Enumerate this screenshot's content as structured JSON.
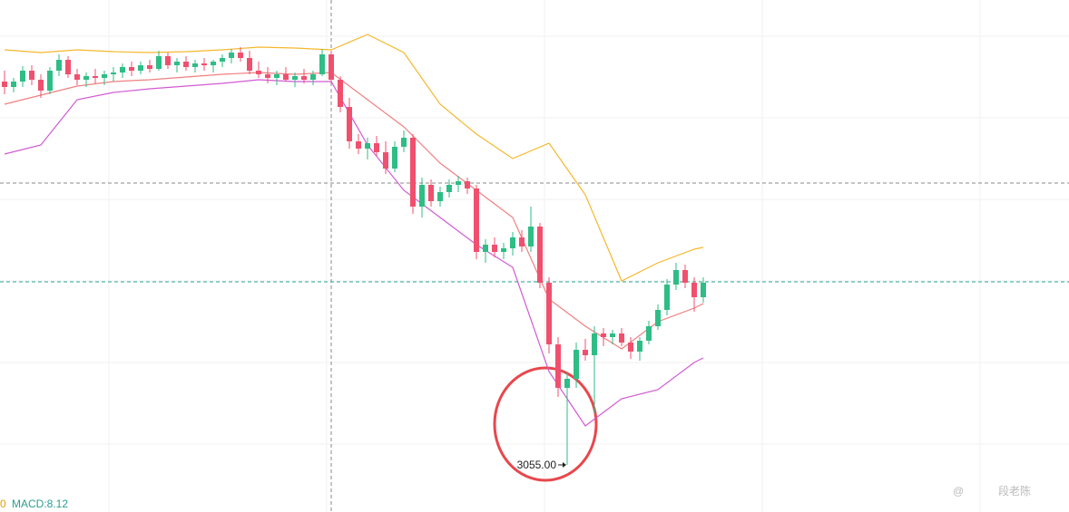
{
  "chart_data": {
    "type": "candlestick",
    "ylim": [
      3003,
      3568
    ],
    "up_color": "#2ebd85",
    "down_color": "#f0506e",
    "candles": [
      [
        3478,
        3490,
        3464,
        3472
      ],
      [
        3472,
        3482,
        3466,
        3478
      ],
      [
        3478,
        3495,
        3472,
        3490
      ],
      [
        3490,
        3496,
        3474,
        3480
      ],
      [
        3480,
        3486,
        3460,
        3468
      ],
      [
        3468,
        3494,
        3464,
        3490
      ],
      [
        3490,
        3508,
        3484,
        3502
      ],
      [
        3502,
        3506,
        3482,
        3486
      ],
      [
        3486,
        3492,
        3474,
        3480
      ],
      [
        3480,
        3488,
        3472,
        3484
      ],
      [
        3484,
        3492,
        3476,
        3482
      ],
      [
        3482,
        3490,
        3474,
        3486
      ],
      [
        3486,
        3494,
        3478,
        3488
      ],
      [
        3488,
        3498,
        3482,
        3494
      ],
      [
        3494,
        3500,
        3484,
        3490
      ],
      [
        3490,
        3500,
        3486,
        3496
      ],
      [
        3496,
        3502,
        3488,
        3492
      ],
      [
        3492,
        3512,
        3490,
        3506
      ],
      [
        3506,
        3510,
        3492,
        3496
      ],
      [
        3496,
        3504,
        3488,
        3500
      ],
      [
        3500,
        3506,
        3490,
        3494
      ],
      [
        3494,
        3502,
        3488,
        3498
      ],
      [
        3498,
        3504,
        3490,
        3496
      ],
      [
        3496,
        3502,
        3488,
        3500
      ],
      [
        3500,
        3508,
        3494,
        3504
      ],
      [
        3504,
        3514,
        3498,
        3510
      ],
      [
        3510,
        3516,
        3500,
        3504
      ],
      [
        3504,
        3512,
        3486,
        3490
      ],
      [
        3490,
        3500,
        3482,
        3486
      ],
      [
        3486,
        3494,
        3476,
        3482
      ],
      [
        3482,
        3490,
        3474,
        3486
      ],
      [
        3486,
        3494,
        3478,
        3480
      ],
      [
        3480,
        3488,
        3472,
        3484
      ],
      [
        3484,
        3492,
        3476,
        3480
      ],
      [
        3480,
        3490,
        3474,
        3486
      ],
      [
        3486,
        3514,
        3484,
        3508
      ],
      [
        3508,
        3512,
        3476,
        3480
      ],
      [
        3480,
        3484,
        3444,
        3450
      ],
      [
        3450,
        3460,
        3404,
        3412
      ],
      [
        3412,
        3420,
        3398,
        3404
      ],
      [
        3404,
        3416,
        3392,
        3410
      ],
      [
        3410,
        3418,
        3396,
        3400
      ],
      [
        3400,
        3412,
        3376,
        3382
      ],
      [
        3382,
        3412,
        3378,
        3406
      ],
      [
        3406,
        3424,
        3400,
        3416
      ],
      [
        3416,
        3420,
        3332,
        3340
      ],
      [
        3340,
        3372,
        3328,
        3364
      ],
      [
        3364,
        3370,
        3340,
        3346
      ],
      [
        3346,
        3362,
        3340,
        3356
      ],
      [
        3356,
        3370,
        3350,
        3364
      ],
      [
        3364,
        3374,
        3356,
        3368
      ],
      [
        3368,
        3372,
        3354,
        3360
      ],
      [
        3360,
        3364,
        3282,
        3290
      ],
      [
        3290,
        3304,
        3278,
        3298
      ],
      [
        3298,
        3306,
        3284,
        3290
      ],
      [
        3290,
        3300,
        3282,
        3294
      ],
      [
        3294,
        3312,
        3286,
        3306
      ],
      [
        3306,
        3314,
        3290,
        3296
      ],
      [
        3296,
        3340,
        3290,
        3318
      ],
      [
        3318,
        3322,
        3250,
        3256
      ],
      [
        3256,
        3262,
        3178,
        3188
      ],
      [
        3188,
        3196,
        3130,
        3140
      ],
      [
        3140,
        3158,
        3055,
        3150
      ],
      [
        3150,
        3190,
        3140,
        3182
      ],
      [
        3182,
        3194,
        3170,
        3176
      ],
      [
        3176,
        3208,
        3112,
        3200
      ],
      [
        3200,
        3206,
        3186,
        3196
      ],
      [
        3196,
        3204,
        3188,
        3200
      ],
      [
        3200,
        3206,
        3186,
        3190
      ],
      [
        3190,
        3196,
        3172,
        3180
      ],
      [
        3180,
        3196,
        3170,
        3192
      ],
      [
        3192,
        3214,
        3188,
        3208
      ],
      [
        3208,
        3232,
        3204,
        3226
      ],
      [
        3226,
        3260,
        3220,
        3254
      ],
      [
        3254,
        3278,
        3248,
        3270
      ],
      [
        3270,
        3276,
        3250,
        3256
      ],
      [
        3256,
        3262,
        3224,
        3240
      ],
      [
        3240,
        3262,
        3234,
        3256
      ]
    ],
    "bands": {
      "x": [
        0,
        4,
        8,
        12,
        16,
        20,
        24,
        28,
        32,
        36,
        40,
        44,
        48,
        52,
        56,
        60,
        64,
        68,
        72,
        76,
        77
      ],
      "series": [
        {
          "color": "#f5b82e",
          "values": [
            3513,
            3510,
            3513,
            3511,
            3510,
            3511,
            3513,
            3516,
            3515,
            3513,
            3530,
            3510,
            3453,
            3420,
            3393,
            3410,
            3353,
            3258,
            3278,
            3293,
            3295
          ]
        },
        {
          "color": "#f08080",
          "values": [
            3453,
            3463,
            3473,
            3478,
            3480,
            3483,
            3486,
            3488,
            3486,
            3488,
            3458,
            3428,
            3388,
            3358,
            3328,
            3238,
            3208,
            3183,
            3213,
            3228,
            3233
          ]
        },
        {
          "color": "#d25ad2",
          "values": [
            3398,
            3408,
            3458,
            3466,
            3470,
            3473,
            3476,
            3480,
            3478,
            3478,
            3408,
            3358,
            3328,
            3298,
            3273,
            3158,
            3098,
            3128,
            3138,
            3168,
            3173
          ]
        }
      ]
    },
    "price_lines": [
      {
        "value": 3366,
        "color": "#888888"
      },
      {
        "value": 3257,
        "color": "#26a69a"
      }
    ],
    "crosshair_index": 36,
    "low_label": "3055.00",
    "low_index": 62,
    "indicator_labels": [
      "0",
      "MACD:8.12"
    ],
    "watermark": [
      "@",
      "段老陈"
    ]
  }
}
